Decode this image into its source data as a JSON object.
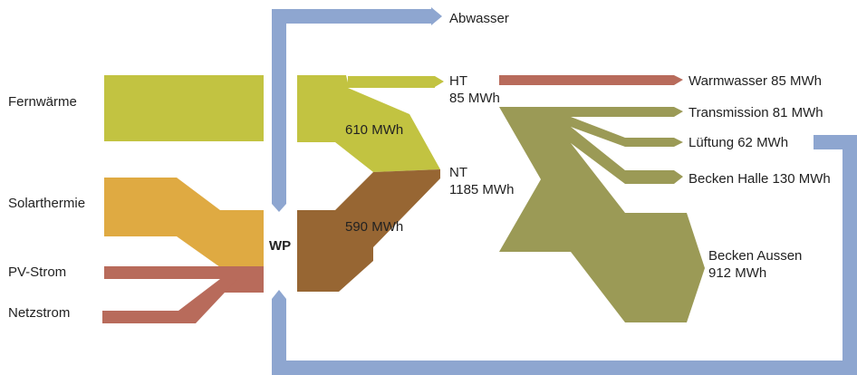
{
  "colors": {
    "fernwaerme": "#c2c341",
    "solar": "#dfaa42",
    "strom": "#b86b5b",
    "nt": "#976633",
    "verbrauch": "#9b9a56",
    "waste": "#8ea6d0"
  },
  "sources": {
    "fernwaerme": "Fernwärme",
    "solarthermie": "Solarthermie",
    "pv_strom": "PV-Strom",
    "netzstrom": "Netzstrom"
  },
  "heat_pump": {
    "label": "WP"
  },
  "waste": {
    "label": "Abwasser"
  },
  "flows": {
    "fernwaerme_value": "610 MWh",
    "wp_value": "590 MWh"
  },
  "levels": {
    "ht_label": "HT",
    "ht_value": "85 MWh",
    "nt_label": "NT",
    "nt_value": "1185 MWh"
  },
  "consumers": {
    "warmwasser": "Warmwasser 85 MWh",
    "transmission": "Transmission 81 MWh",
    "lueftung": "Lüftung 62 MWh",
    "becken_halle": "Becken Halle 130 MWh",
    "becken_aussen_label": "Becken Aussen",
    "becken_aussen_value": "912 MWh"
  }
}
